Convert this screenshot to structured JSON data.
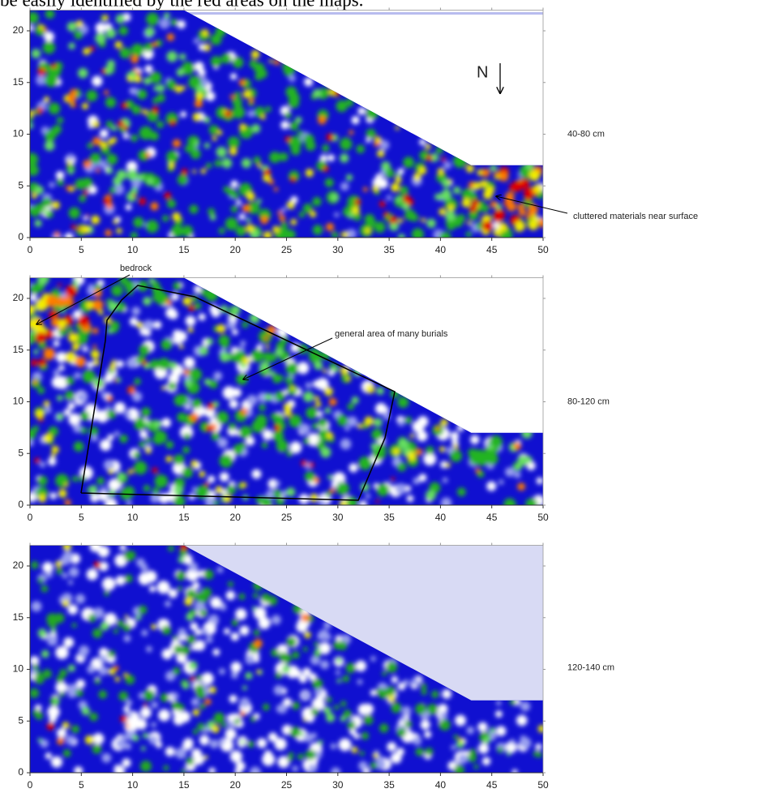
{
  "intro_text": "be easily identified by the red areas on the maps.",
  "panels": [
    {
      "depth_label": "40-80 cm",
      "xticks": [
        0,
        5,
        10,
        15,
        20,
        25,
        30,
        35,
        40,
        45,
        50
      ],
      "yticks": [
        0,
        5,
        10,
        15,
        20
      ],
      "annotations": [
        "cluttered materials near surface"
      ],
      "north_label": "N"
    },
    {
      "depth_label": "80-120 cm",
      "xticks": [
        0,
        5,
        10,
        15,
        20,
        25,
        30,
        35,
        40,
        45,
        50
      ],
      "yticks": [
        0,
        5,
        10,
        15,
        20
      ],
      "annotations": [
        "bedrock",
        "general area of many burials"
      ]
    },
    {
      "depth_label": "120-140 cm",
      "xticks": [
        0,
        5,
        10,
        15,
        20,
        25,
        30,
        35,
        40,
        45,
        50
      ],
      "yticks": [
        0,
        5,
        10,
        15,
        20
      ]
    }
  ]
}
